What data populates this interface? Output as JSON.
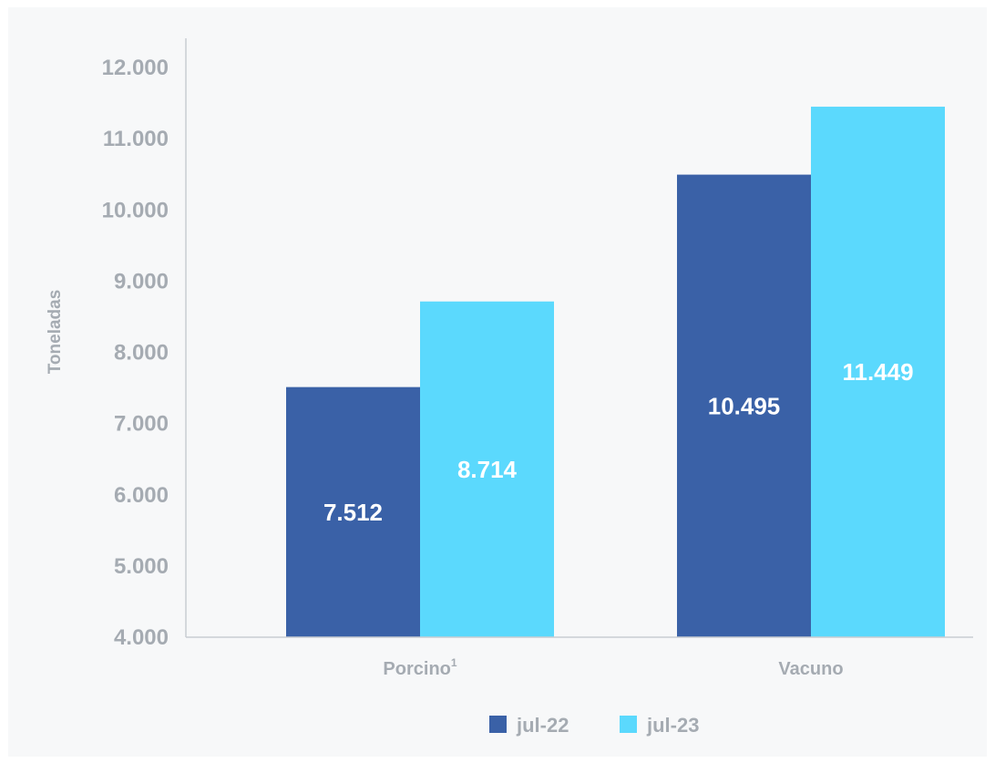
{
  "chart_data": {
    "type": "bar",
    "categories": [
      "Porcino",
      "Vacuno"
    ],
    "category_superscripts": [
      "1",
      ""
    ],
    "series": [
      {
        "name": "jul-22",
        "values": [
          7512,
          10495
        ],
        "labels": [
          "7.512",
          "10.495"
        ],
        "color": "#3a61a7"
      },
      {
        "name": "jul-23",
        "values": [
          8714,
          11449
        ],
        "labels": [
          "8.714",
          "11.449"
        ],
        "color": "#5bd9fd"
      }
    ],
    "ylabel": "Toneladas",
    "ylim": [
      4000,
      12000
    ],
    "yticks": [
      4000,
      5000,
      6000,
      7000,
      8000,
      9000,
      10000,
      11000,
      12000
    ],
    "ytick_labels": [
      "4.000",
      "5.000",
      "6.000",
      "7.000",
      "8.000",
      "9.000",
      "10.000",
      "11.000",
      "12.000"
    ],
    "grid": false,
    "legend_position": "bottom-center",
    "axis_color": "#c9cdd2",
    "text_color": "#a5abb2",
    "background": "#f7f8f9"
  }
}
